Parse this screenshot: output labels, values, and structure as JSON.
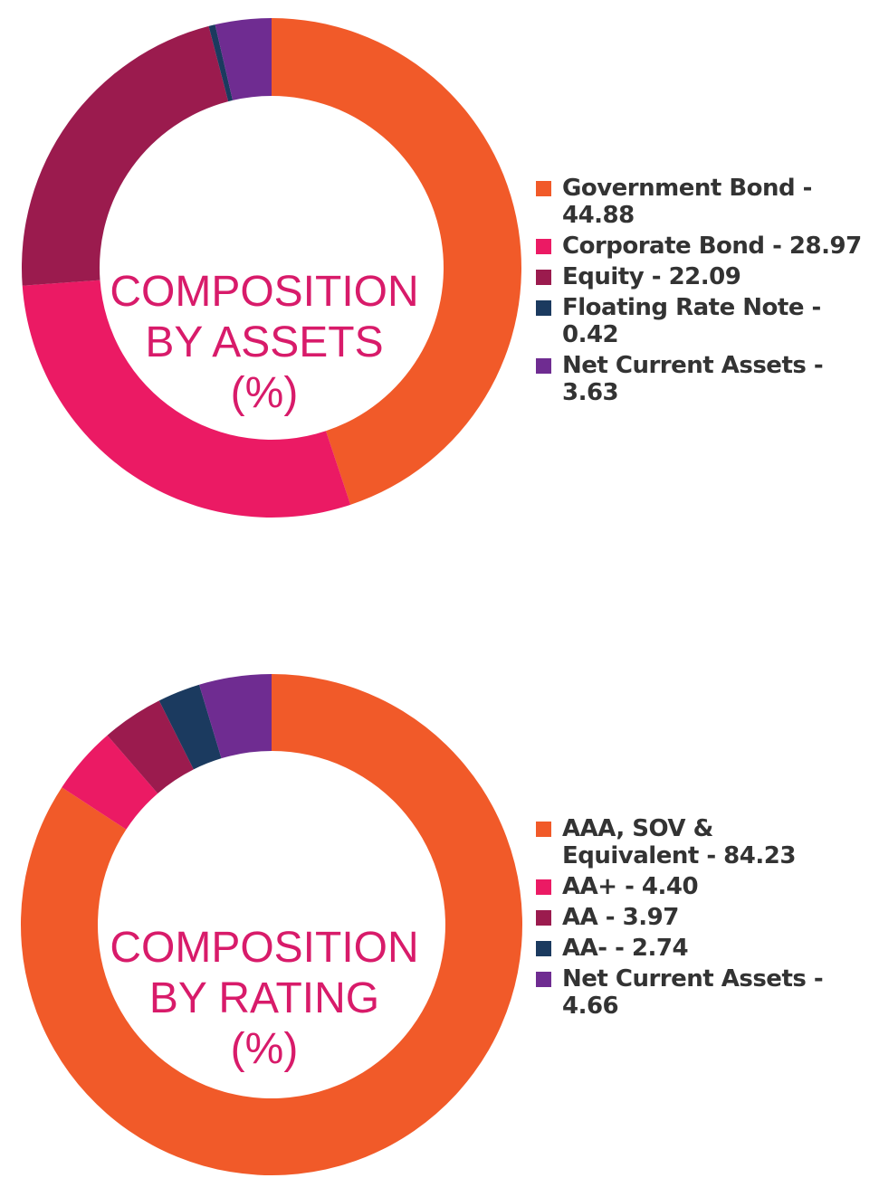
{
  "chart_data": [
    {
      "type": "pie",
      "title_lines": [
        "COMPOSITION",
        "BY ASSETS",
        "(%)"
      ],
      "series": [
        {
          "name": "Government Bond",
          "value": 44.88,
          "color": "#f15a29"
        },
        {
          "name": "Corporate Bond",
          "value": 28.97,
          "color": "#eb1a64"
        },
        {
          "name": "Equity",
          "value": 22.09,
          "color": "#9b1b4e"
        },
        {
          "name": "Floating Rate Note",
          "value": 0.42,
          "color": "#1b3a5f"
        },
        {
          "name": "Net Current Assets",
          "value": 3.63,
          "color": "#6f2c91"
        }
      ],
      "legend": [
        "Government Bond - 44.88",
        "Corporate Bond - 28.97",
        "Equity - 22.09",
        "Floating Rate Note - 0.42",
        "Net Current Assets - 3.63"
      ],
      "legend_position": "right"
    },
    {
      "type": "pie",
      "title_lines": [
        "COMPOSITION",
        "BY RATING",
        "(%)"
      ],
      "series": [
        {
          "name": "AAA, SOV & Equivalent",
          "value": 84.23,
          "color": "#f15a29"
        },
        {
          "name": "AA+",
          "value": 4.4,
          "color": "#eb1a64"
        },
        {
          "name": "AA",
          "value": 3.97,
          "color": "#9b1b4e"
        },
        {
          "name": "AA-",
          "value": 2.74,
          "color": "#1b3a5f"
        },
        {
          "name": "Net Current Assets",
          "value": 4.66,
          "color": "#6f2c91"
        }
      ],
      "legend": [
        "AAA, SOV & Equivalent - 84.23",
        "AA+ - 4.40",
        "AA - 3.97",
        "AA- - 2.74",
        "Net Current Assets - 4.66"
      ],
      "legend_position": "right"
    }
  ]
}
